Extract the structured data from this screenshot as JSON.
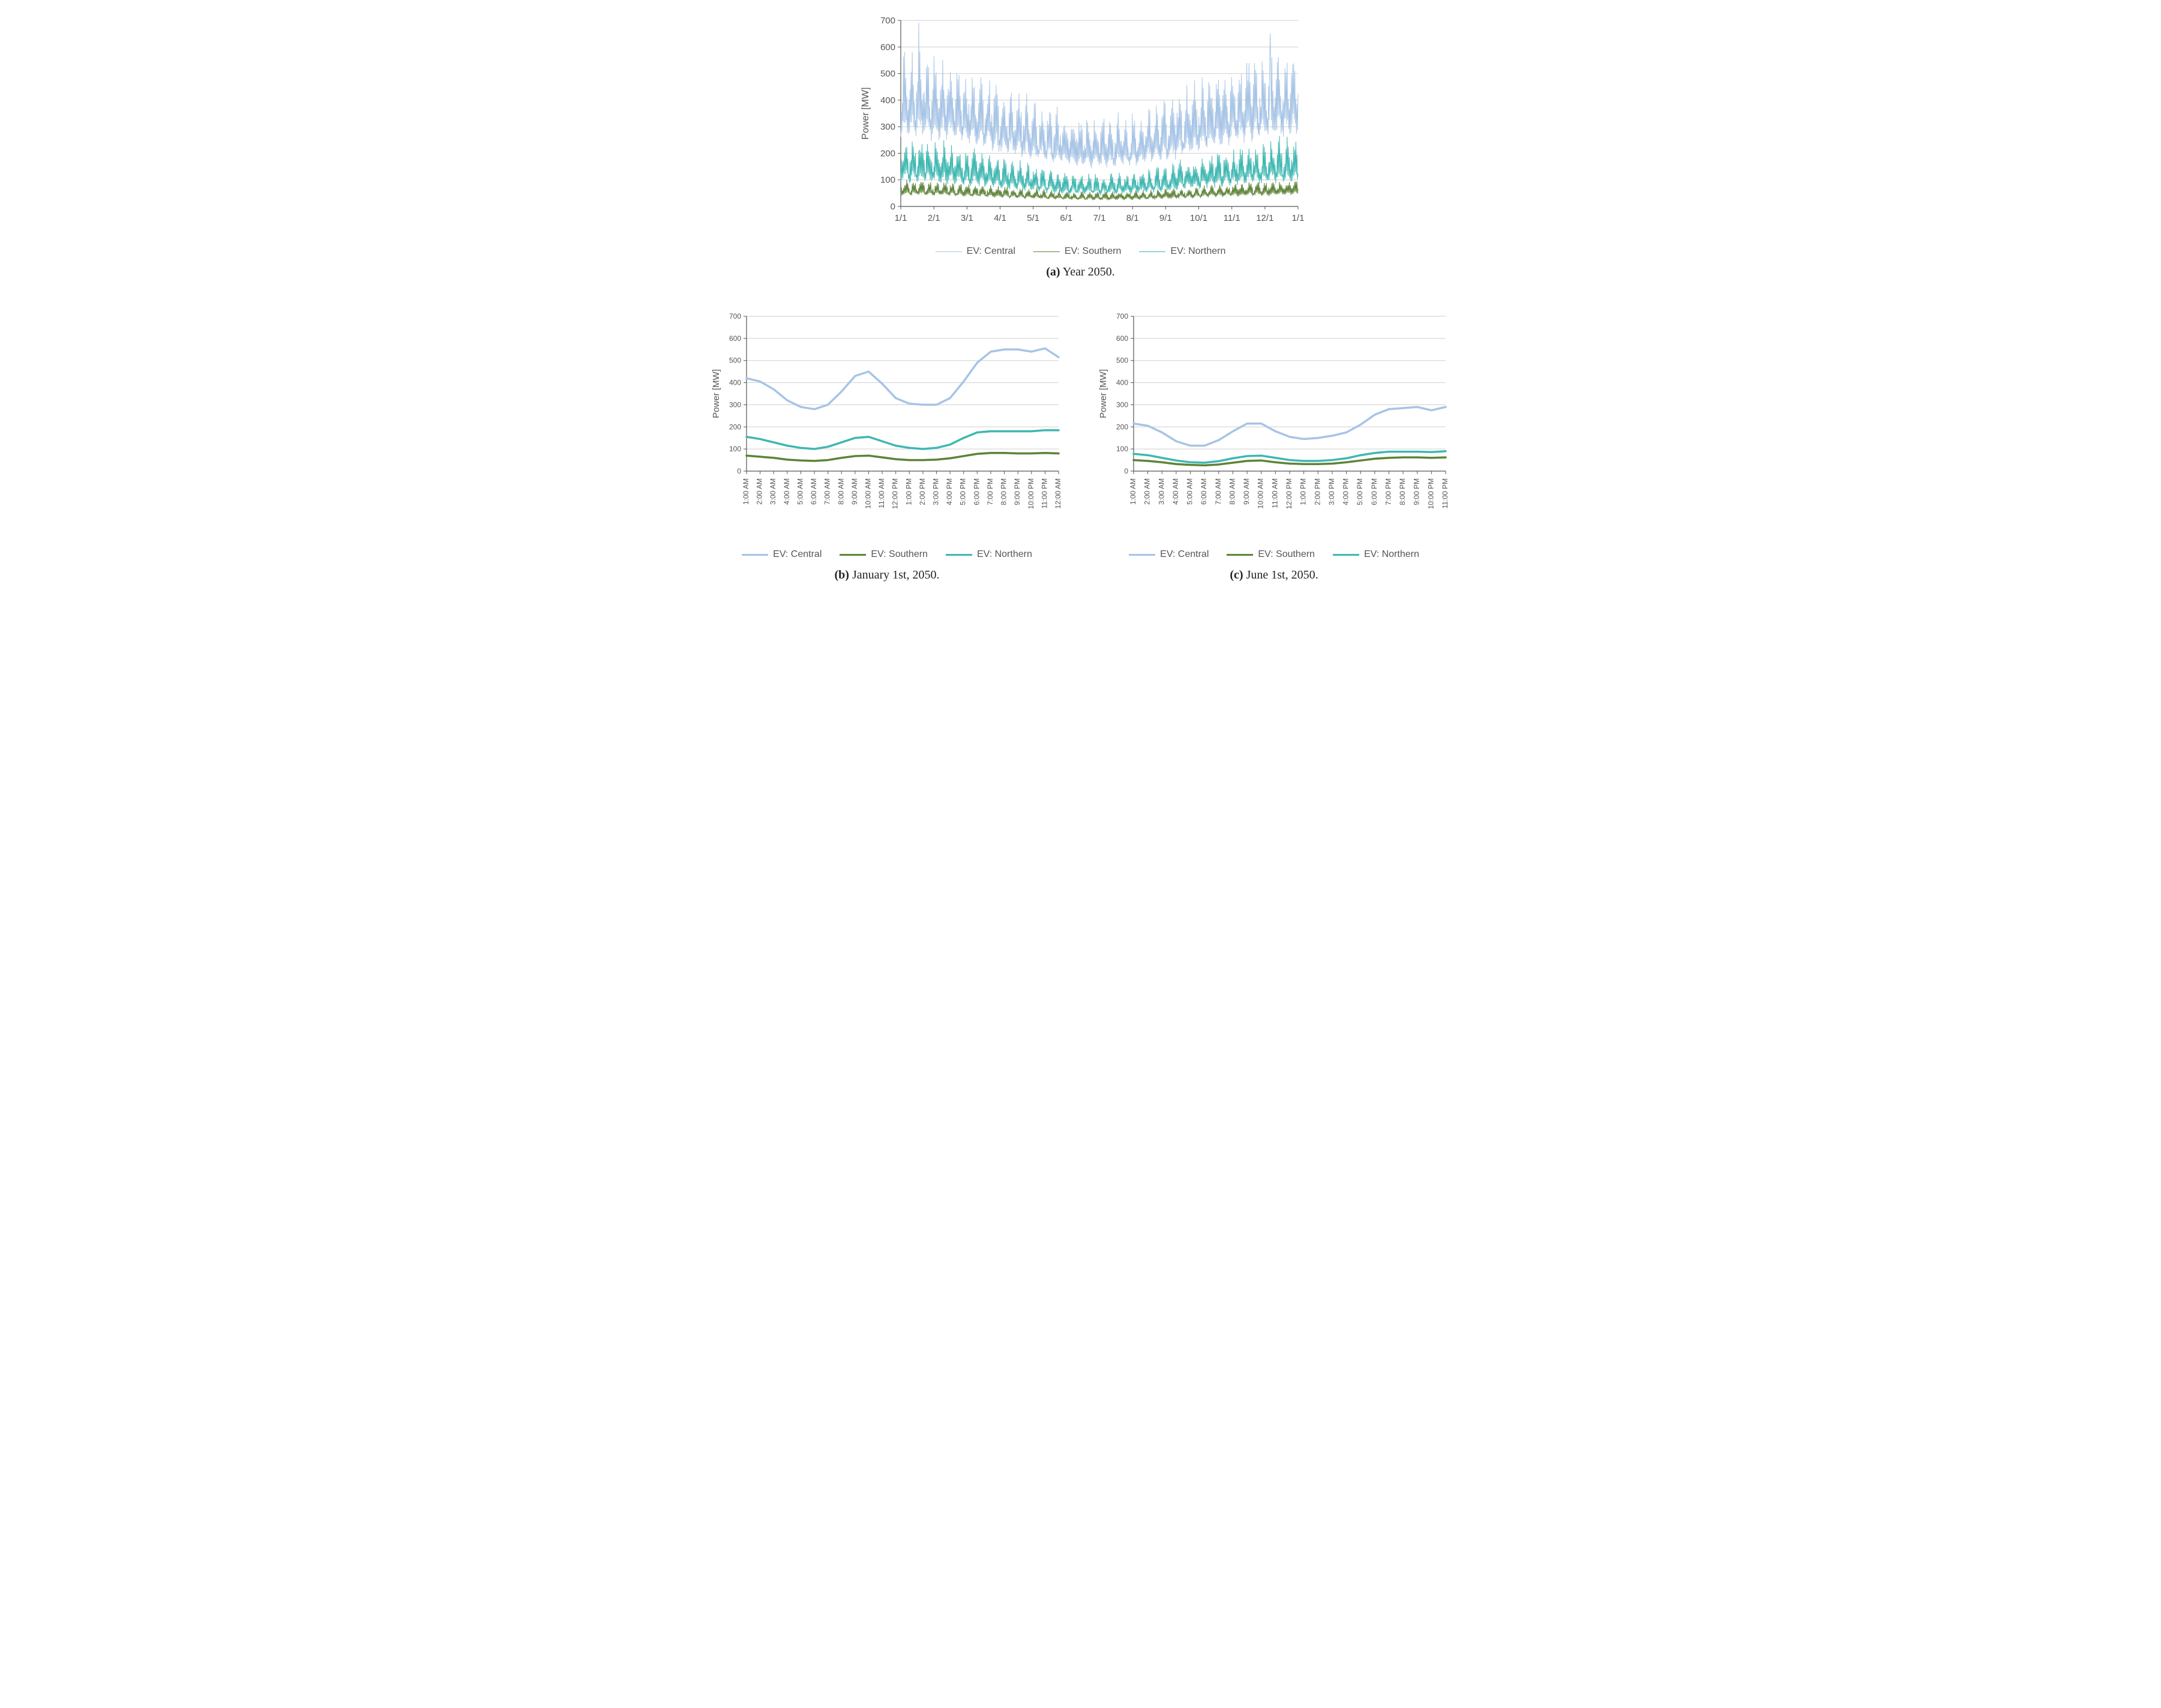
{
  "colors": {
    "central": "#a7c4e6",
    "southern": "#5d8338",
    "northern": "#3fb7b1",
    "grid": "#cfcfcf",
    "axis": "#555555",
    "text": "#555555",
    "bg": "#ffffff"
  },
  "legend_labels": {
    "central": "EV: Central",
    "southern": "EV: Southern",
    "northern": "EV: Northern"
  },
  "chart_a": {
    "type": "line-dense",
    "ylabel": "Power [MW]",
    "ylim": [
      0,
      700
    ],
    "ytick_step": 100,
    "x_ticks": [
      "1/1",
      "2/1",
      "3/1",
      "4/1",
      "5/1",
      "6/1",
      "7/1",
      "8/1",
      "9/1",
      "10/1",
      "11/1",
      "12/1",
      "1/1"
    ],
    "title_fontsize": 16,
    "label_fontsize": 16,
    "tick_fontsize": 15,
    "line_width_top": 1.0,
    "line_width_legend": 1.4,
    "series_envelope": {
      "central": {
        "base_hi": 580,
        "base_lo": 220,
        "dip_hi": 330,
        "dip_lo": 120,
        "peak1": 690,
        "peak2": 650
      },
      "northern": {
        "base_hi": 250,
        "base_lo": 70,
        "dip_hi": 120,
        "dip_lo": 35
      },
      "southern": {
        "base_hi": 95,
        "base_lo": 35,
        "dip_hi": 55,
        "dip_lo": 20
      }
    }
  },
  "chart_b": {
    "type": "line",
    "ylabel": "Power [MW]",
    "ylim": [
      0,
      700
    ],
    "ytick_step": 100,
    "line_width": 3.5,
    "tick_fontsize": 12,
    "label_fontsize": 15,
    "x_ticks": [
      "1:00 AM",
      "2:00 AM",
      "3:00 AM",
      "4:00 AM",
      "5:00 AM",
      "6:00 AM",
      "7:00 AM",
      "8:00 AM",
      "9:00 AM",
      "10:00 AM",
      "11:00 AM",
      "12:00 PM",
      "1:00 PM",
      "2:00 PM",
      "3:00 PM",
      "4:00 PM",
      "5:00 PM",
      "6:00 PM",
      "7:00 PM",
      "8:00 PM",
      "9:00 PM",
      "10:00 PM",
      "11:00 PM",
      "12:00 AM"
    ],
    "series": {
      "central": [
        420,
        405,
        370,
        320,
        290,
        280,
        300,
        360,
        430,
        450,
        395,
        330,
        305,
        300,
        300,
        330,
        405,
        490,
        540,
        550,
        550,
        540,
        555,
        515
      ],
      "northern": [
        155,
        145,
        130,
        115,
        105,
        100,
        110,
        130,
        150,
        155,
        135,
        115,
        105,
        100,
        105,
        120,
        150,
        175,
        180,
        180,
        180,
        180,
        185,
        185
      ],
      "southern": [
        70,
        65,
        60,
        52,
        48,
        46,
        50,
        60,
        68,
        70,
        62,
        54,
        50,
        50,
        52,
        58,
        68,
        78,
        82,
        82,
        80,
        80,
        82,
        80
      ]
    }
  },
  "chart_c": {
    "type": "line",
    "ylabel": "Power [MW]",
    "ylim": [
      0,
      700
    ],
    "ytick_step": 100,
    "line_width": 3.5,
    "tick_fontsize": 12,
    "label_fontsize": 15,
    "x_ticks": [
      "1:00 AM",
      "2:00 AM",
      "3:00 AM",
      "4:00 AM",
      "5:00 AM",
      "6:00 AM",
      "7:00 AM",
      "8:00 AM",
      "9:00 AM",
      "10:00 AM",
      "11:00 AM",
      "12:00 PM",
      "1:00 PM",
      "2:00 PM",
      "3:00 PM",
      "4:00 PM",
      "5:00 PM",
      "6:00 PM",
      "7:00 PM",
      "8:00 PM",
      "9:00 PM",
      "10:00 PM",
      "11:00 PM"
    ],
    "series": {
      "central": [
        215,
        205,
        175,
        135,
        115,
        115,
        140,
        180,
        215,
        215,
        180,
        155,
        145,
        150,
        160,
        175,
        210,
        255,
        280,
        285,
        290,
        275,
        290
      ],
      "northern": [
        78,
        72,
        60,
        48,
        40,
        38,
        45,
        58,
        68,
        70,
        60,
        50,
        46,
        46,
        50,
        58,
        72,
        82,
        88,
        88,
        88,
        86,
        90
      ],
      "southern": [
        50,
        46,
        40,
        32,
        28,
        26,
        30,
        38,
        46,
        48,
        40,
        34,
        32,
        32,
        34,
        40,
        48,
        56,
        60,
        62,
        62,
        60,
        62
      ]
    }
  },
  "captions": {
    "a": {
      "label": "(a)",
      "text": "Year 2050."
    },
    "b": {
      "label": "(b)",
      "text": "January 1st, 2050."
    },
    "c": {
      "label": "(c)",
      "text": "June 1st, 2050."
    }
  }
}
